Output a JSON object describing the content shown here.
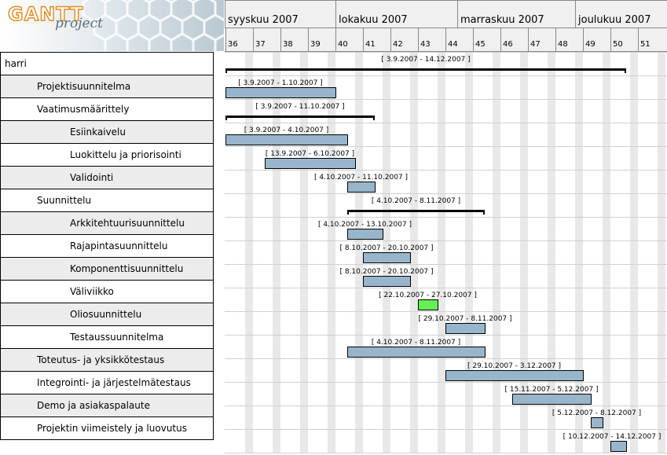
{
  "logo": {
    "gantt": "GANTT",
    "project": "project"
  },
  "timeline": {
    "months": [
      "syyskuu 2007",
      "lokakuu 2007",
      "marraskuu 2007",
      "joulukuu 2007"
    ],
    "weeks": [
      "36",
      "37",
      "38",
      "39",
      "40",
      "41",
      "42",
      "43",
      "44",
      "45",
      "46",
      "47",
      "48",
      "49",
      "50",
      "51"
    ]
  },
  "tasks": [
    {
      "name": "harri",
      "level": 0,
      "type": "summary",
      "start": "2007-09-03",
      "end": "2007-12-14",
      "label": "[ 3.9.2007 - 14.12.2007 ]"
    },
    {
      "name": "Projektisuunnitelma",
      "level": 1,
      "type": "task",
      "start": "2007-09-03",
      "end": "2007-10-01",
      "label": "[ 3.9.2007 - 1.10.2007 ]"
    },
    {
      "name": "Vaatimusmäärittely",
      "level": 1,
      "type": "summary",
      "start": "2007-09-03",
      "end": "2007-10-11",
      "label": "[ 3.9.2007 - 11.10.2007 ]"
    },
    {
      "name": "Esiinkaivelu",
      "level": 2,
      "type": "task",
      "start": "2007-09-03",
      "end": "2007-10-04",
      "label": "[ 3.9.2007 - 4.10.2007 ]"
    },
    {
      "name": "Luokittelu ja priorisointi",
      "level": 2,
      "type": "task",
      "start": "2007-09-13",
      "end": "2007-10-06",
      "label": "[ 13.9.2007 - 6.10.2007 ]"
    },
    {
      "name": "Validointi",
      "level": 2,
      "type": "task",
      "start": "2007-10-04",
      "end": "2007-10-11",
      "label": "[ 4.10.2007 - 11.10.2007 ]"
    },
    {
      "name": "Suunnittelu",
      "level": 1,
      "type": "summary",
      "start": "2007-10-04",
      "end": "2007-11-08",
      "label": "[ 4.10.2007 - 8.11.2007 ]"
    },
    {
      "name": "Arkkitehtuurisuunnittelu",
      "level": 2,
      "type": "task",
      "start": "2007-10-04",
      "end": "2007-10-13",
      "label": "[ 4.10.2007 - 13.10.2007 ]"
    },
    {
      "name": "Rajapintasuunnittelu",
      "level": 2,
      "type": "task",
      "start": "2007-10-08",
      "end": "2007-10-20",
      "label": "[ 8.10.2007 - 20.10.2007 ]"
    },
    {
      "name": "Komponenttisuunnittelu",
      "level": 2,
      "type": "task",
      "start": "2007-10-08",
      "end": "2007-10-20",
      "label": "[ 8.10.2007 - 20.10.2007 ]"
    },
    {
      "name": "Väliviikko",
      "level": 2,
      "type": "break",
      "start": "2007-10-22",
      "end": "2007-10-27",
      "label": "[ 22.10.2007 - 27.10.2007 ]"
    },
    {
      "name": "Oliosuunnittelu",
      "level": 2,
      "type": "task",
      "start": "2007-10-29",
      "end": "2007-11-08",
      "label": "[ 29.10.2007 - 8.11.2007 ]"
    },
    {
      "name": "Testaussuunnitelma",
      "level": 2,
      "type": "task",
      "start": "2007-10-04",
      "end": "2007-11-08",
      "label": "[ 4.10.2007 - 8.11.2007 ]"
    },
    {
      "name": "Toteutus- ja yksikkötestaus",
      "level": 1,
      "type": "task",
      "start": "2007-10-29",
      "end": "2007-12-03",
      "label": "[ 29.10.2007 - 3.12.2007 ]"
    },
    {
      "name": "Integrointi- ja järjestelmätestaus",
      "level": 1,
      "type": "task",
      "start": "2007-11-15",
      "end": "2007-12-05",
      "label": "[ 15.11.2007 - 5.12.2007 ]"
    },
    {
      "name": "Demo ja asiakaspalaute",
      "level": 1,
      "type": "task",
      "start": "2007-12-05",
      "end": "2007-12-08",
      "label": "[ 5.12.2007 - 8.12.2007 ]"
    },
    {
      "name": "Projektin viimeistely ja luovutus",
      "level": 1,
      "type": "task",
      "start": "2007-12-10",
      "end": "2007-12-14",
      "label": "[ 10.12.2007 - 14.12.2007 ]"
    }
  ],
  "colors": {
    "task_bar": "#98b6cb",
    "break_bar": "#66ee55",
    "weekend": "#e8e8e8",
    "header_bg": "#f0f0f0",
    "row_alt": "#ececec"
  }
}
